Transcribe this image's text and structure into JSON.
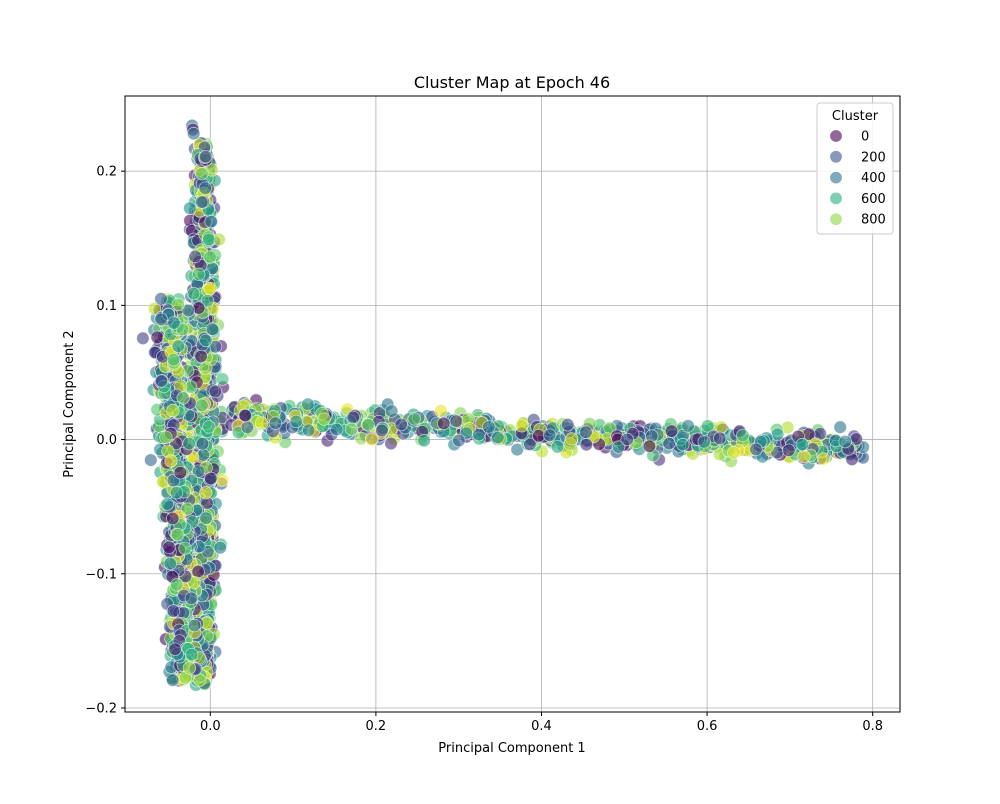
{
  "chart_data": {
    "type": "scatter",
    "title": "Cluster Map at Epoch 46",
    "xlabel": "Principal Component 1",
    "ylabel": "Principal Component 2",
    "xlim": [
      -0.103,
      0.833
    ],
    "ylim": [
      -0.203,
      0.256
    ],
    "x_ticks": [
      0.0,
      0.2,
      0.4,
      0.6,
      0.8
    ],
    "x_tick_labels": [
      "0.0",
      "0.2",
      "0.4",
      "0.6",
      "0.8"
    ],
    "y_ticks": [
      -0.2,
      -0.1,
      0.0,
      0.1,
      0.2
    ],
    "y_tick_labels": [
      "−0.2",
      "−0.1",
      "0.0",
      "0.1",
      "0.2"
    ],
    "grid": true,
    "colormap": "viridis",
    "color_range": [
      0,
      999
    ],
    "point_alpha": 0.6,
    "legend": {
      "title": "Cluster",
      "placement": "top-right",
      "entries": [
        {
          "label": "0",
          "color": "#440154"
        },
        {
          "label": "200",
          "color": "#3b518b"
        },
        {
          "label": "400",
          "color": "#2c718e"
        },
        {
          "label": "600",
          "color": "#28ae80"
        },
        {
          "label": "800",
          "color": "#8fd744"
        }
      ]
    },
    "series_groups": [
      {
        "name": "vertical cluster band",
        "x_range": [
          -0.025,
          0.012
        ],
        "y_range": [
          -0.185,
          0.235
        ],
        "approx_points": 1100
      },
      {
        "name": "left lobe",
        "x_range": [
          -0.065,
          -0.015
        ],
        "y_range": [
          -0.185,
          0.108
        ],
        "approx_points": 700
      },
      {
        "name": "horizontal arm",
        "x_range": [
          0.02,
          0.79
        ],
        "y_range": [
          -0.015,
          0.028
        ],
        "approx_points": 700
      }
    ]
  }
}
